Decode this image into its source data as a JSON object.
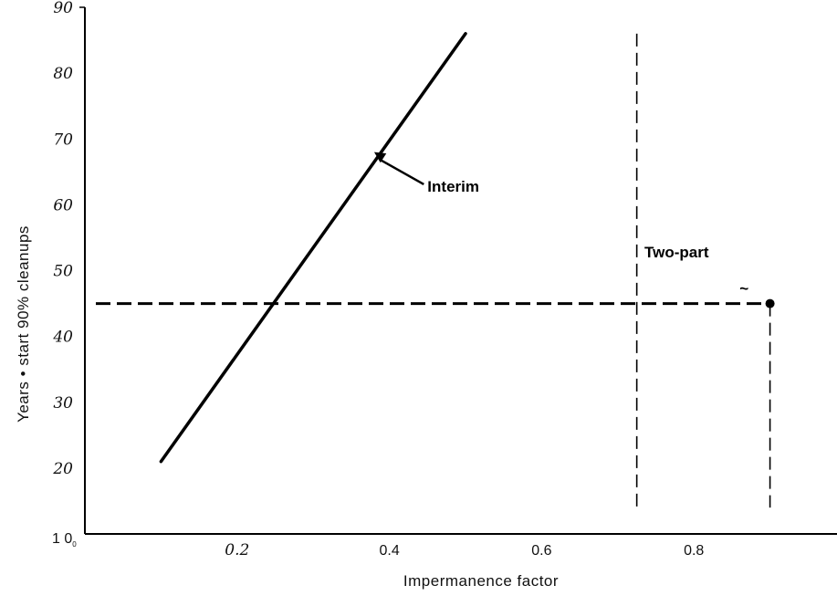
{
  "chart_data": {
    "type": "line",
    "xlabel": "Impermanence factor",
    "ylabel": "Years • start 90% cleanups",
    "xlim": [
      0,
      1.0
    ],
    "ylim": [
      10,
      90
    ],
    "x_ticks": [
      {
        "value": 0.2,
        "label": "0.2"
      },
      {
        "value": 0.4,
        "label": "0.4"
      },
      {
        "value": 0.6,
        "label": "0.6"
      },
      {
        "value": 0.8,
        "label": "0.8"
      }
    ],
    "y_ticks": [
      {
        "value": 20,
        "label": "20"
      },
      {
        "value": 30,
        "label": "30"
      },
      {
        "value": 40,
        "label": "40"
      },
      {
        "value": 50,
        "label": "50"
      },
      {
        "value": 60,
        "label": "60"
      },
      {
        "value": 70,
        "label": "70"
      },
      {
        "value": 80,
        "label": "80"
      },
      {
        "value": 90,
        "label": "90"
      }
    ],
    "origin_label": "1 0",
    "origin_sub": "0",
    "series": [
      {
        "name": "Interim",
        "style": "solid",
        "x": [
          0.1,
          0.5
        ],
        "y": [
          21,
          86
        ]
      }
    ],
    "reference_lines": [
      {
        "orientation": "horizontal",
        "style": "dashed",
        "y": 45,
        "x_range": [
          0.0,
          0.9
        ]
      },
      {
        "orientation": "vertical",
        "style": "dashed",
        "x": 0.725,
        "y_range": [
          14,
          86
        ]
      },
      {
        "orientation": "vertical",
        "style": "dashed",
        "x": 0.9,
        "y_range": [
          14,
          45
        ]
      }
    ],
    "markers": [
      {
        "x": 0.9,
        "y": 45,
        "shape": "dot"
      }
    ],
    "annotations": [
      {
        "text": "Interim",
        "x": 0.45,
        "y": 62,
        "arrow_to": [
          0.38,
          68
        ]
      },
      {
        "text": "Two-part",
        "x": 0.735,
        "y": 52
      },
      {
        "text": "~",
        "x": 0.86,
        "y": 46.5
      }
    ],
    "grid": false,
    "legend": "none",
    "colors": {
      "line": "#000000",
      "axis": "#000000",
      "text": "#111111"
    }
  }
}
